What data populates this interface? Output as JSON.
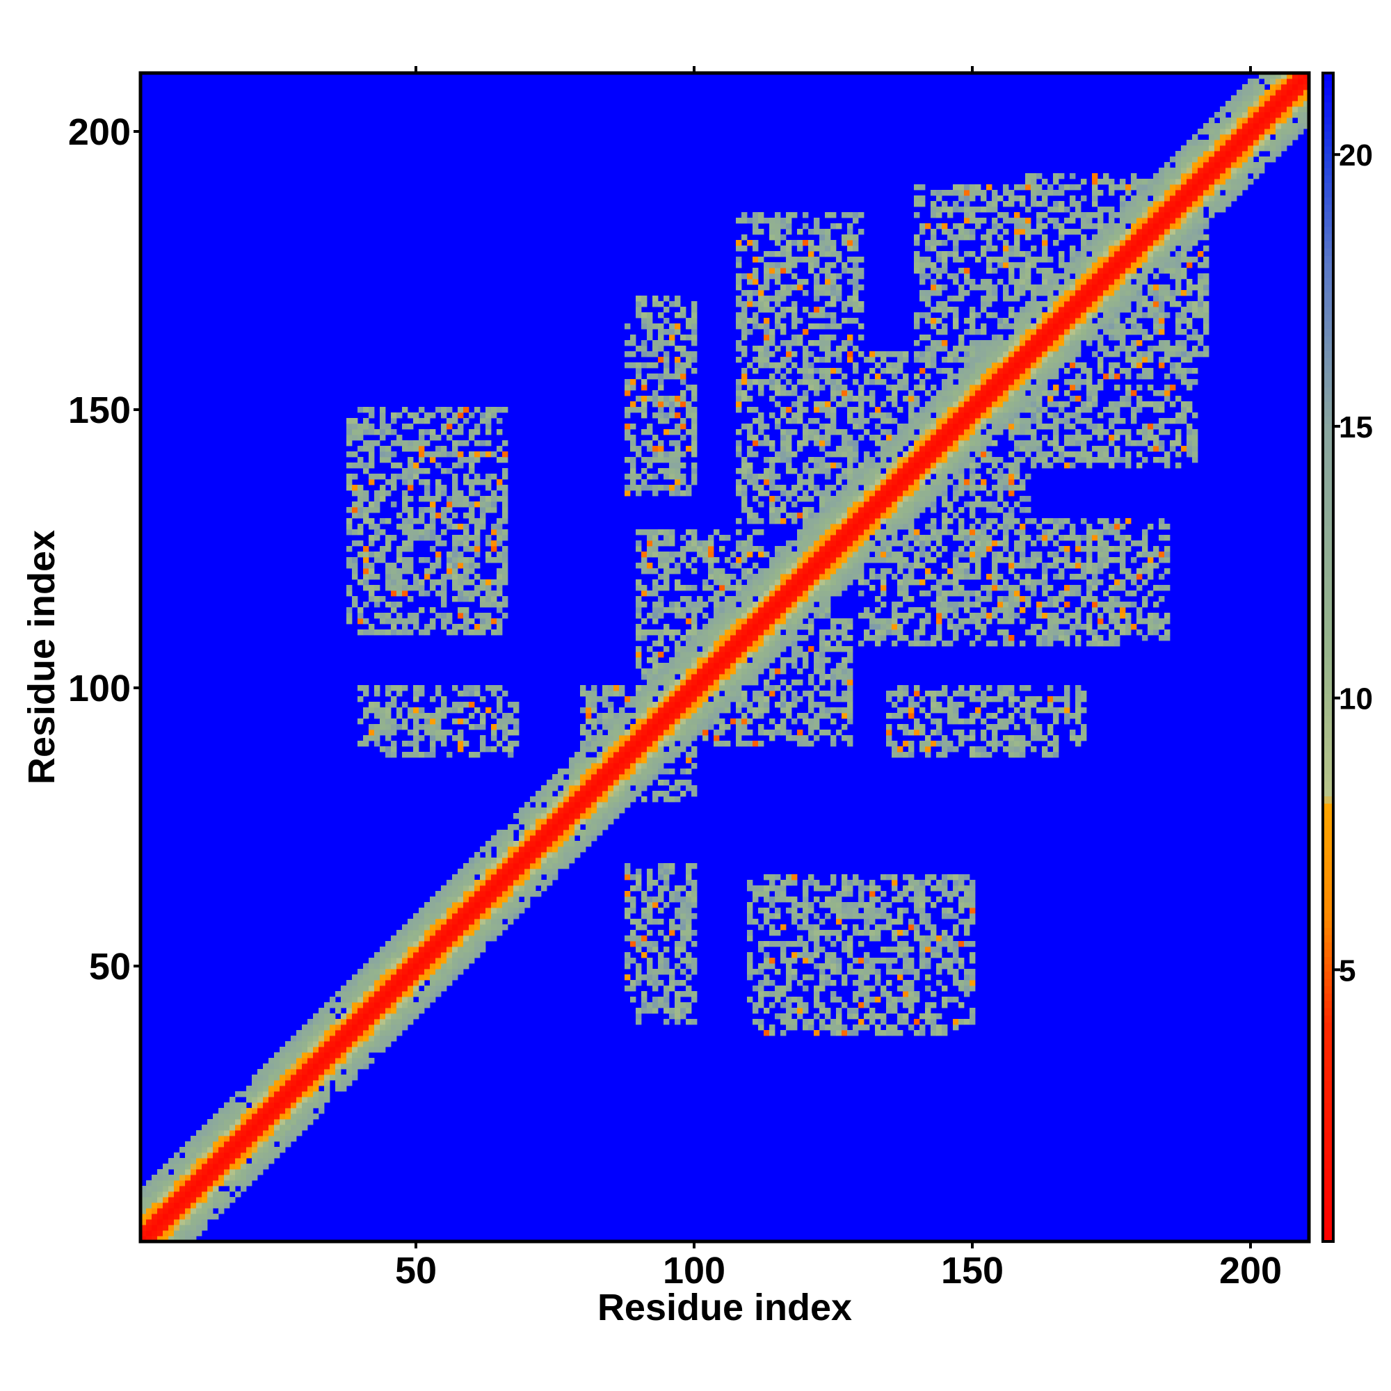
{
  "chart_data": {
    "type": "heatmap",
    "title": "",
    "xlabel": "Residue index",
    "ylabel": "Residue index",
    "xlim": [
      1,
      210
    ],
    "ylim": [
      1,
      210
    ],
    "xticks": [
      50,
      100,
      150,
      200
    ],
    "yticks": [
      50,
      100,
      150,
      200
    ],
    "colorbar": {
      "range": [
        0,
        21.5
      ],
      "ticks": [
        5,
        10,
        15,
        20
      ],
      "stops": [
        {
          "value": 0,
          "color": "#ff0000"
        },
        {
          "value": 4,
          "color": "#ff2a00"
        },
        {
          "value": 6,
          "color": "#ff8a00"
        },
        {
          "value": 8,
          "color": "#ffa500"
        },
        {
          "value": 8.2,
          "color": "#b8c48a"
        },
        {
          "value": 11,
          "color": "#96b48c"
        },
        {
          "value": 15,
          "color": "#8aa6a0"
        },
        {
          "value": 18,
          "color": "#5a78c8"
        },
        {
          "value": 20,
          "color": "#2040e0"
        },
        {
          "value": 21.5,
          "color": "#0000ff"
        }
      ]
    },
    "background_value": 21.5,
    "background_color": "#0000ff",
    "diagonal_band": {
      "core": 2,
      "orange": 4,
      "halo": 9
    },
    "contact_clusters": [
      {
        "x": [
          80,
          100
        ],
        "y": [
          80,
          100
        ]
      },
      {
        "x": [
          100,
          125
        ],
        "y": [
          100,
          125
        ]
      },
      {
        "x": [
          125,
          160
        ],
        "y": [
          125,
          160
        ]
      },
      {
        "x": [
          160,
          192
        ],
        "y": [
          160,
          192
        ]
      },
      {
        "x": [
          38,
          64
        ],
        "y": [
          112,
          148
        ]
      },
      {
        "x": [
          44,
          68
        ],
        "y": [
          88,
          100
        ]
      },
      {
        "x": [
          90,
          100
        ],
        "y": [
          40,
          68
        ]
      },
      {
        "x": [
          110,
          150
        ],
        "y": [
          40,
          66
        ]
      },
      {
        "x": [
          92,
          128
        ],
        "y": [
          90,
          112
        ]
      },
      {
        "x": [
          108,
          130
        ],
        "y": [
          130,
          185
        ]
      },
      {
        "x": [
          140,
          165
        ],
        "y": [
          145,
          190
        ]
      },
      {
        "x": [
          165,
          190
        ],
        "y": [
          145,
          172
        ]
      },
      {
        "x": [
          132,
          178
        ],
        "y": [
          110,
          125
        ]
      },
      {
        "x": [
          135,
          165
        ],
        "y": [
          88,
          98
        ]
      },
      {
        "x": [
          90,
          100
        ],
        "y": [
          135,
          170
        ]
      }
    ]
  }
}
